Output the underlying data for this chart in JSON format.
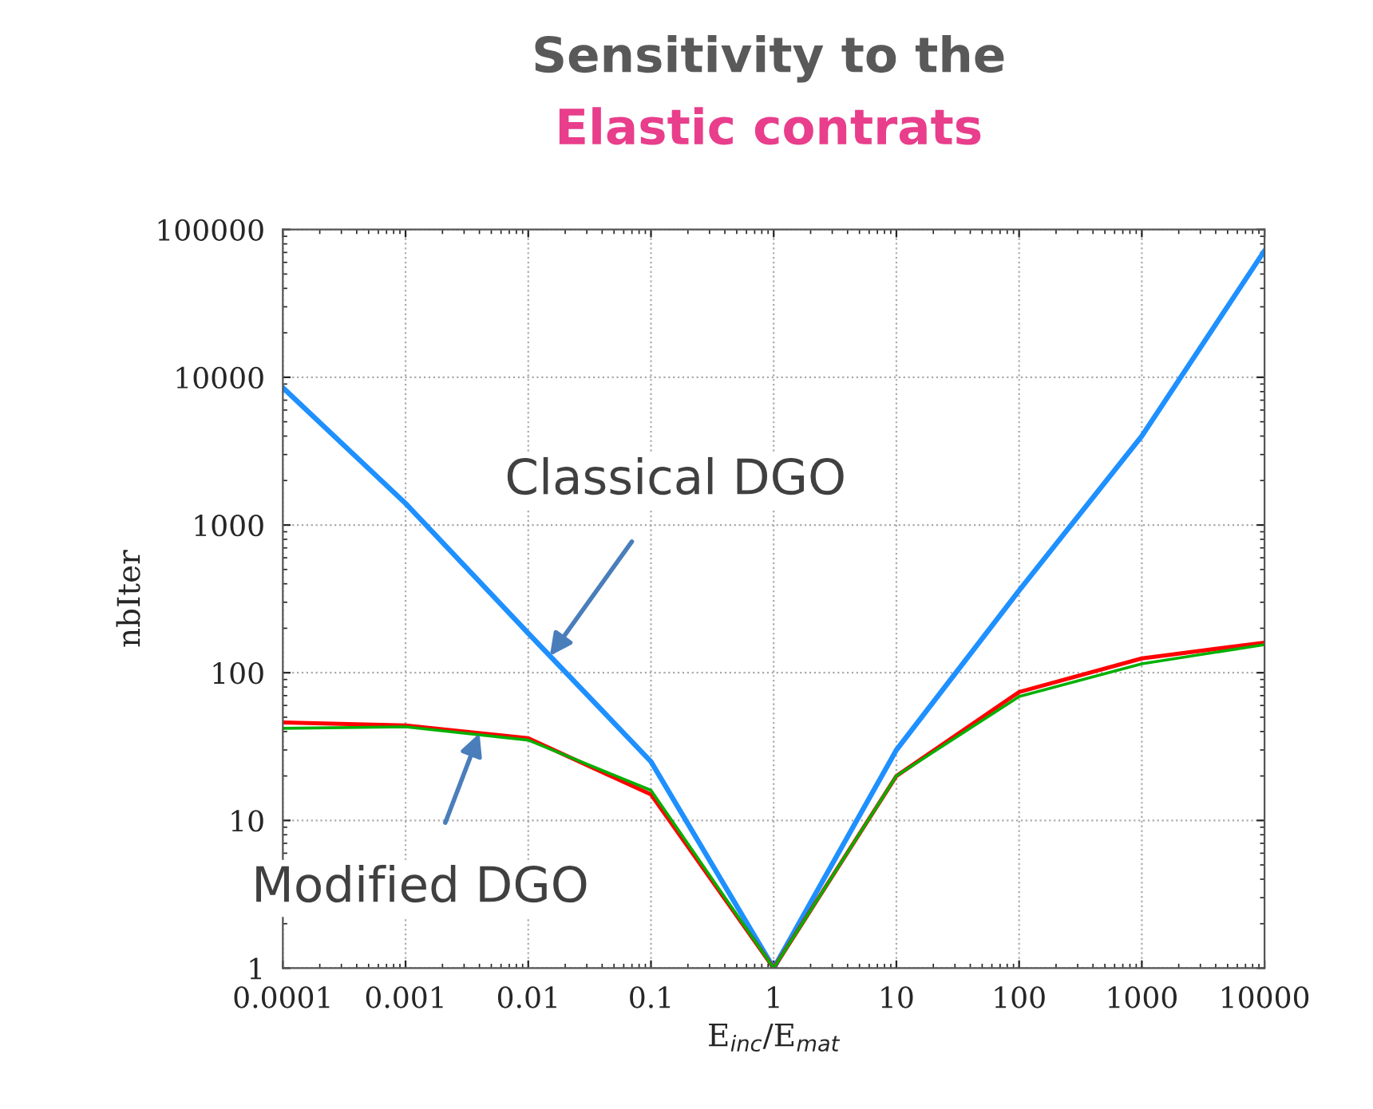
{
  "chart_data": {
    "type": "line",
    "title": "Sensitivity to the",
    "subtitle": "Elastic contrats",
    "xlabel": "E$_{inc}$/E$_{mat}$",
    "ylabel": "nbIter",
    "x": [
      0.0001,
      0.001,
      0.01,
      0.1,
      1,
      10,
      100,
      1000,
      10000
    ],
    "series": [
      {
        "color": "#1e90ff",
        "values": [
          8500,
          1400,
          185,
          25,
          1,
          30,
          360,
          4000,
          72000
        ]
      },
      {
        "color": "#ff0000",
        "values": [
          46,
          44,
          36,
          15,
          1,
          20,
          74,
          125,
          160
        ]
      },
      {
        "color": "#00b000",
        "values": [
          42,
          43,
          35,
          16,
          1,
          20,
          69,
          115,
          155
        ]
      }
    ],
    "log": "xy",
    "xlim": [
      0.0001,
      10000
    ],
    "ylim": [
      1,
      100000
    ],
    "xticks": [
      0.0001,
      0.001,
      0.01,
      0.1,
      1,
      10,
      100,
      1000,
      10000
    ],
    "yticks": [
      1,
      10,
      100,
      1000,
      10000,
      100000
    ],
    "grid": true,
    "marker": "none",
    "line_style": "solid",
    "annotations": [
      {
        "text": "Classical DGO",
        "x": 0.015,
        "y": 130
      },
      {
        "text": "Modified DGO",
        "x": 0.004,
        "y": 39
      }
    ]
  }
}
